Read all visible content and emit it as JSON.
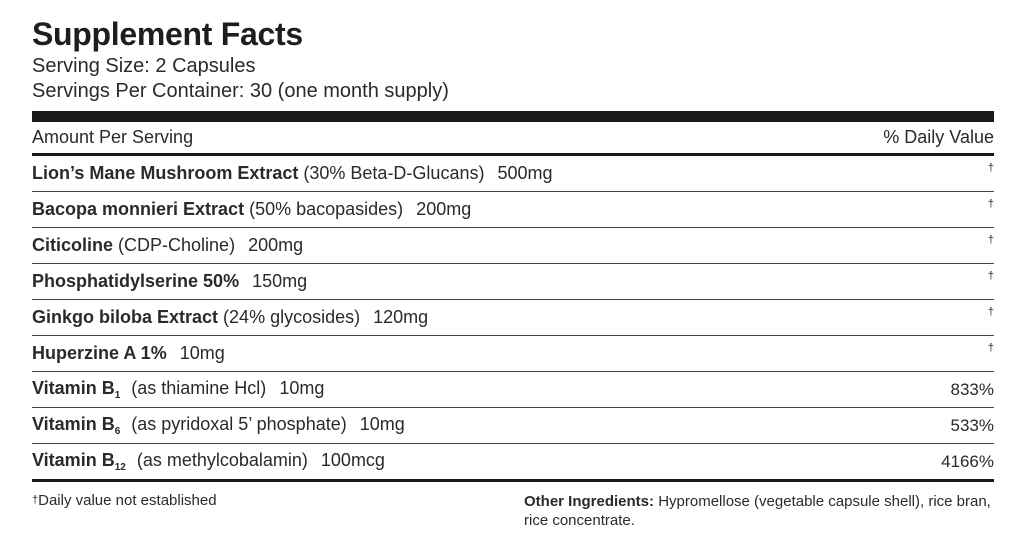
{
  "title": "Supplement Facts",
  "serving_size": "Serving Size: 2 Capsules",
  "servings_per_container": "Servings Per Container: 30 (one month supply)",
  "header": {
    "amount_label": "Amount Per Serving",
    "dv_label": "% Daily Value"
  },
  "rows": [
    {
      "name": "Lion’s Mane Mushroom Extract",
      "detail": "(30% Beta-D-Glucans)",
      "amount": "500mg",
      "dv": "†"
    },
    {
      "name": "Bacopa monnieri Extract",
      "detail": "(50% bacopasides)",
      "amount": "200mg",
      "dv": "†"
    },
    {
      "name": "Citicoline",
      "detail": "(CDP-Choline)",
      "amount": "200mg",
      "dv": "†"
    },
    {
      "name": "Phosphatidylserine 50%",
      "detail": "",
      "amount": "150mg",
      "dv": "†"
    },
    {
      "name": "Ginkgo biloba Extract",
      "detail": "(24% glycosides)",
      "amount": "120mg",
      "dv": "†"
    },
    {
      "name": "Huperzine A 1%",
      "detail": "",
      "amount": "10mg",
      "dv": "†"
    },
    {
      "name": "Vitamin B",
      "sub": "1",
      "detail": "(as thiamine Hcl)",
      "amount": "10mg",
      "dv": "833%"
    },
    {
      "name": "Vitamin B",
      "sub": "6",
      "detail": "(as pyridoxal 5’ phosphate)",
      "amount": "10mg",
      "dv": "533%"
    },
    {
      "name": "Vitamin B",
      "sub": "12",
      "detail": "(as methylcobalamin)",
      "amount": "100mcg",
      "dv": "4166%"
    }
  ],
  "footnote": {
    "dagger": "†",
    "text": "Daily value not established"
  },
  "other_ingredients": {
    "label": "Other Ingredients:",
    "text": "Hypromellose (vegetable capsule shell), rice bran, rice concentrate."
  }
}
